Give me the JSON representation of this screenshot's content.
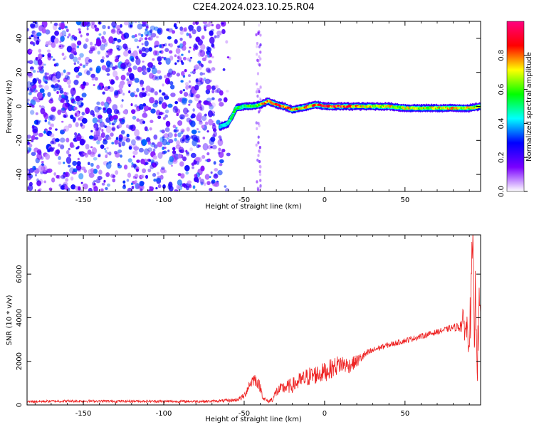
{
  "title": "C2E4.2024.023.10.25.R04",
  "chart_data": [
    {
      "type": "heatmap",
      "xlabel": "Height of straight line (km)",
      "ylabel": "Frequency (Hz)",
      "xlim": [
        -185,
        97
      ],
      "ylim": [
        -50,
        50
      ],
      "xticks": [
        -150,
        -100,
        -50,
        0,
        50
      ],
      "yticks": [
        -40,
        -20,
        0,
        20,
        40
      ],
      "grid": false,
      "colorbar": {
        "label": "Normalized spectral amplitude",
        "range": [
          0,
          1
        ],
        "ticks": [
          0.0,
          0.2,
          0.4,
          0.6,
          0.8
        ],
        "tick_labels": [
          "0.0",
          "0.2",
          "0.4",
          "0.6",
          "0.8"
        ],
        "colormap": [
          "#ffffff",
          "#7a00ff",
          "#0000ff",
          "#00ffff",
          "#00ff00",
          "#ffff00",
          "#ff0000",
          "#ff0080"
        ]
      },
      "noise_region": {
        "x": [
          -185,
          -57
        ],
        "y": [
          -50,
          50
        ],
        "intensity": 0.35
      },
      "faint_stripe": {
        "x": -41,
        "y": [
          -50,
          50
        ],
        "intensity": 0.15
      },
      "signal_track": {
        "x": [
          -65,
          -60,
          -57,
          -55,
          -50,
          -45,
          -40,
          -35,
          -30,
          -25,
          -20,
          -15,
          -10,
          -5,
          0,
          10,
          20,
          30,
          40,
          50,
          60,
          70,
          80,
          90,
          97
        ],
        "frequency": [
          -12,
          -10,
          -5,
          -1,
          0,
          0,
          1,
          3,
          1,
          0,
          -2,
          -1,
          0,
          1,
          0,
          0,
          0,
          0,
          0,
          -1,
          -1,
          -1,
          -1,
          -1,
          0
        ],
        "amplitude": [
          0.4,
          0.45,
          0.5,
          0.55,
          0.55,
          0.6,
          0.7,
          0.85,
          0.9,
          0.85,
          0.8,
          0.75,
          0.8,
          0.85,
          0.9,
          0.9,
          0.75,
          0.7,
          0.7,
          0.7,
          0.65,
          0.7,
          0.75,
          0.7,
          0.6
        ]
      }
    },
    {
      "type": "line",
      "xlabel": "Height of straight line (km)",
      "ylabel": "SNR (10 * v/v)",
      "xlim": [
        -185,
        97
      ],
      "ylim": [
        0,
        7800
      ],
      "xticks": [
        -150,
        -100,
        -50,
        0,
        50
      ],
      "yticks": [
        0,
        2000,
        4000,
        6000
      ],
      "grid": false,
      "series": [
        {
          "color": "#ee2222",
          "x": [
            -185,
            -170,
            -150,
            -130,
            -110,
            -90,
            -70,
            -55,
            -50,
            -47,
            -44,
            -42,
            -40,
            -38,
            -35,
            -32,
            -30,
            -25,
            -20,
            -15,
            -10,
            -5,
            0,
            5,
            10,
            15,
            20,
            25,
            30,
            35,
            40,
            45,
            50,
            55,
            60,
            65,
            70,
            75,
            80,
            84,
            86,
            88,
            90,
            91,
            92,
            93,
            94,
            95,
            96,
            97
          ],
          "y": [
            150,
            170,
            180,
            170,
            170,
            160,
            170,
            220,
            400,
            900,
            1200,
            1100,
            800,
            300,
            150,
            300,
            600,
            800,
            900,
            1100,
            1300,
            1400,
            1500,
            1700,
            1900,
            1800,
            2000,
            2300,
            2500,
            2650,
            2750,
            2850,
            2950,
            3050,
            3150,
            3250,
            3350,
            3450,
            3550,
            3600,
            3800,
            3500,
            3300,
            4500,
            7500,
            3000,
            5500,
            1800,
            4800,
            4000
          ],
          "noise": [
            60,
            60,
            60,
            60,
            60,
            60,
            60,
            80,
            150,
            250,
            300,
            300,
            250,
            120,
            80,
            150,
            250,
            300,
            350,
            400,
            450,
            450,
            450,
            450,
            450,
            350,
            300,
            200,
            150,
            130,
            130,
            130,
            130,
            130,
            130,
            130,
            130,
            130,
            150,
            250,
            600,
            800,
            1000,
            1200,
            1500,
            1500,
            1500,
            1200,
            800,
            400
          ]
        }
      ]
    }
  ]
}
